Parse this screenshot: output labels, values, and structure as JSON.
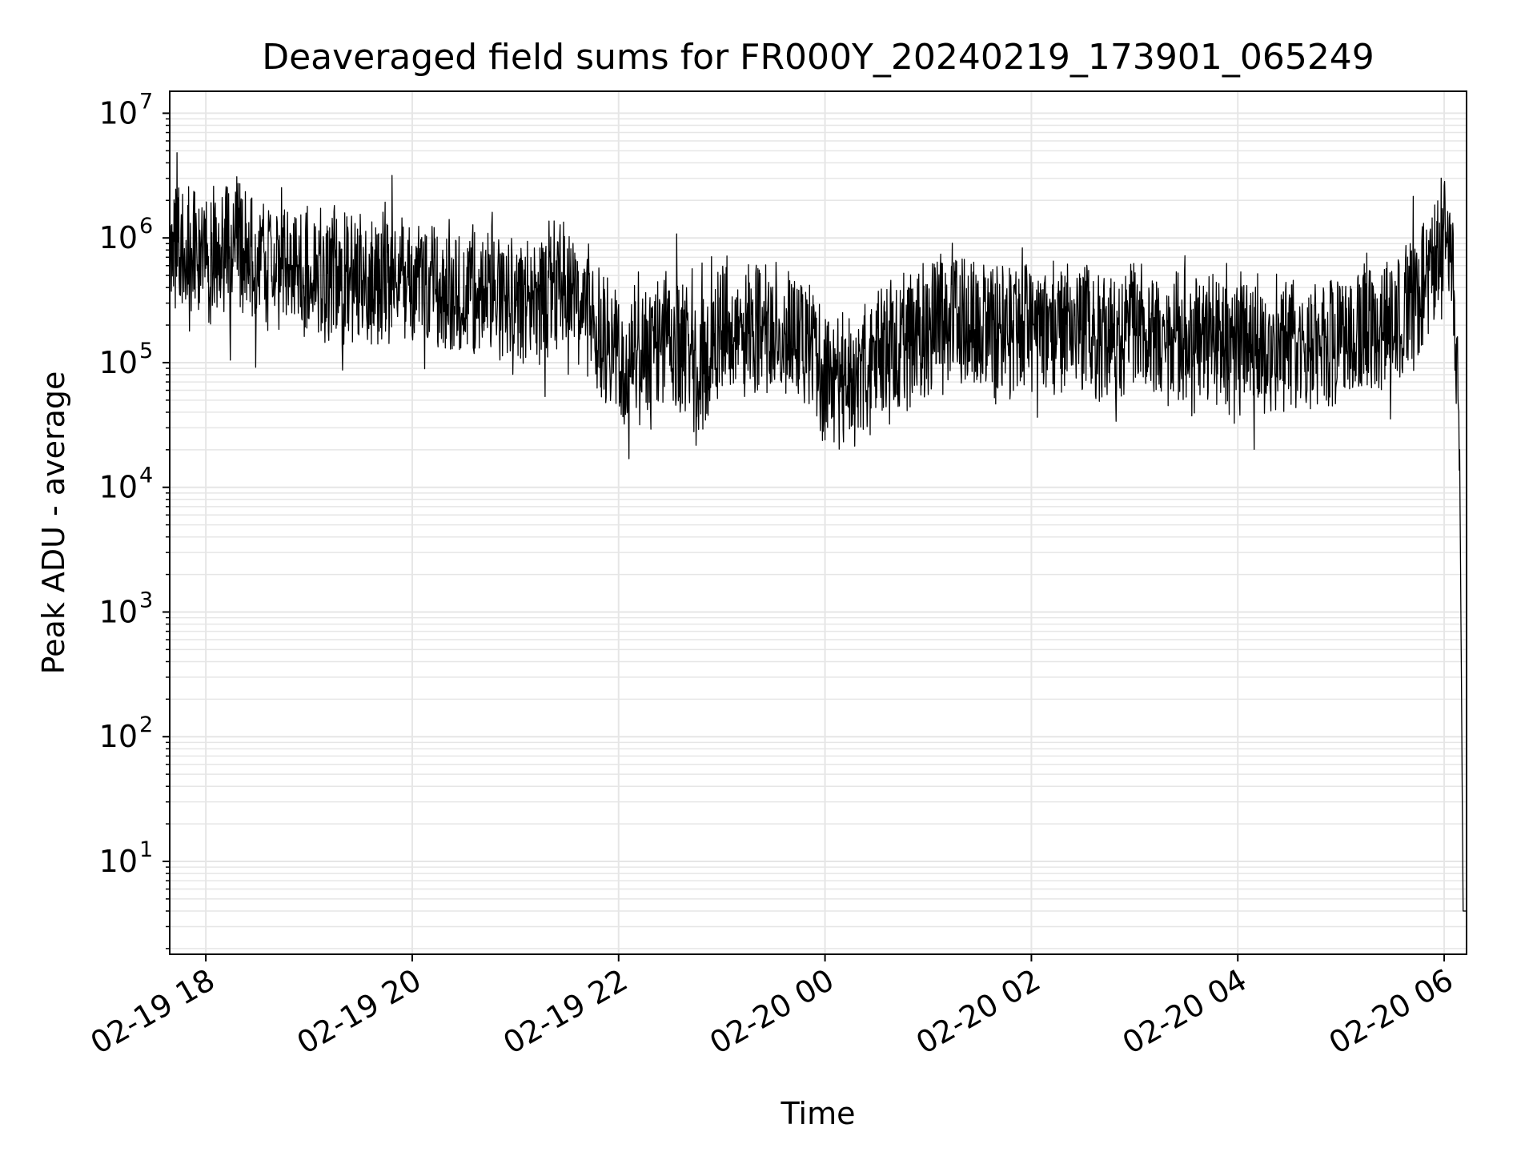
{
  "chart_data": {
    "type": "line",
    "title": "Deaveraged field sums for FR000Y_20240219_173901_065249",
    "xlabel": "Time",
    "ylabel": "Peak ADU - average",
    "y_scale": "log",
    "ylim": [
      1.8,
      15000000
    ],
    "xlim": [
      "2024-02-19 17:39",
      "2024-02-20 06:13"
    ],
    "x_ticks": [
      {
        "value": "2024-02-19 18:00",
        "label": "02-19 18"
      },
      {
        "value": "2024-02-19 20:00",
        "label": "02-19 20"
      },
      {
        "value": "2024-02-19 22:00",
        "label": "02-19 22"
      },
      {
        "value": "2024-02-20 00:00",
        "label": "02-20 00"
      },
      {
        "value": "2024-02-20 02:00",
        "label": "02-20 02"
      },
      {
        "value": "2024-02-20 04:00",
        "label": "02-20 04"
      },
      {
        "value": "2024-02-20 06:00",
        "label": "02-20 06"
      }
    ],
    "y_ticks": [
      {
        "value": 10,
        "base": "10",
        "exp": "1"
      },
      {
        "value": 100,
        "base": "10",
        "exp": "2"
      },
      {
        "value": 1000,
        "base": "10",
        "exp": "3"
      },
      {
        "value": 10000,
        "base": "10",
        "exp": "4"
      },
      {
        "value": 100000,
        "base": "10",
        "exp": "5"
      },
      {
        "value": 1000000,
        "base": "10",
        "exp": "6"
      },
      {
        "value": 10000000,
        "base": "10",
        "exp": "7"
      }
    ],
    "grid": true,
    "line_color": "#000000",
    "grid_color": "#e6e6e6",
    "series": [
      {
        "x": [
          "2024-02-19 17:39",
          "2024-02-19 17:50",
          "2024-02-19 18:00",
          "2024-02-19 18:15",
          "2024-02-19 18:30",
          "2024-02-19 18:45",
          "2024-02-19 19:00",
          "2024-02-19 19:15",
          "2024-02-19 19:30",
          "2024-02-19 19:45",
          "2024-02-19 20:00",
          "2024-02-19 20:15",
          "2024-02-19 20:30",
          "2024-02-19 20:45",
          "2024-02-19 21:00",
          "2024-02-19 21:15",
          "2024-02-19 21:30",
          "2024-02-19 21:45",
          "2024-02-19 22:00",
          "2024-02-19 22:15",
          "2024-02-19 22:30",
          "2024-02-19 22:45",
          "2024-02-19 23:00",
          "2024-02-19 23:15",
          "2024-02-19 23:30",
          "2024-02-19 23:45",
          "2024-02-20 00:00",
          "2024-02-20 00:15",
          "2024-02-20 00:30",
          "2024-02-20 00:45",
          "2024-02-20 01:00",
          "2024-02-20 01:15",
          "2024-02-20 01:30",
          "2024-02-20 01:45",
          "2024-02-20 02:00",
          "2024-02-20 02:15",
          "2024-02-20 02:30",
          "2024-02-20 02:45",
          "2024-02-20 03:00",
          "2024-02-20 03:15",
          "2024-02-20 03:30",
          "2024-02-20 03:45",
          "2024-02-20 04:00",
          "2024-02-20 04:15",
          "2024-02-20 04:30",
          "2024-02-20 04:45",
          "2024-02-20 05:00",
          "2024-02-20 05:15",
          "2024-02-20 05:30",
          "2024-02-20 05:45",
          "2024-02-20 05:55",
          "2024-02-20 06:00",
          "2024-02-20 06:03",
          "2024-02-20 06:06",
          "2024-02-20 06:09",
          "2024-02-20 06:11",
          "2024-02-20 06:13"
        ],
        "y": [
          800000,
          900000,
          700000,
          800000,
          600000,
          700000,
          500000,
          550000,
          450000,
          500000,
          450000,
          400000,
          350000,
          350000,
          300000,
          300000,
          500000,
          200000,
          120000,
          100000,
          200000,
          80000,
          200000,
          200000,
          180000,
          200000,
          70000,
          70000,
          100000,
          150000,
          200000,
          250000,
          200000,
          150000,
          200000,
          180000,
          180000,
          150000,
          180000,
          150000,
          150000,
          150000,
          150000,
          130000,
          150000,
          140000,
          150000,
          200000,
          200000,
          300000,
          800000,
          1200000,
          900000,
          400000,
          20000,
          4,
          4
        ]
      }
    ]
  }
}
